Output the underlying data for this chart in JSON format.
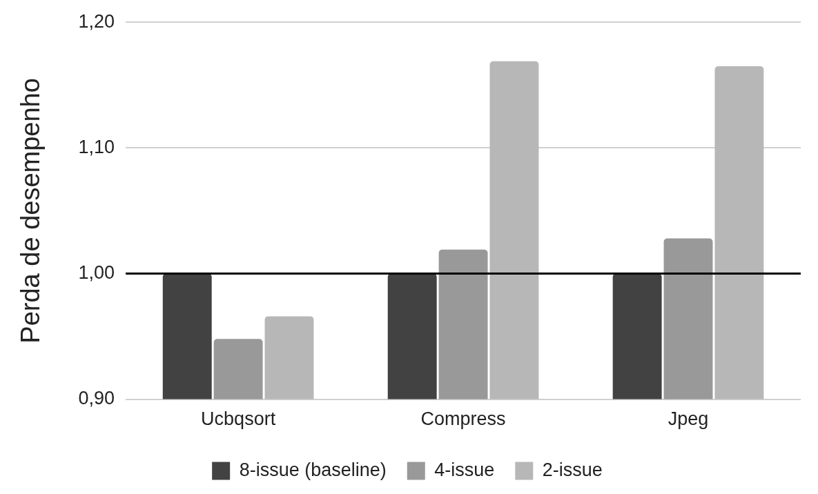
{
  "chart_data": {
    "type": "bar",
    "ylabel": "Perda de desempenho",
    "categories": [
      "Ucbqsort",
      "Compress",
      "Jpeg"
    ],
    "series": [
      {
        "name": "8-issue (baseline)",
        "color": "#424242",
        "values": [
          1.0,
          1.0,
          1.0
        ]
      },
      {
        "name": "4-issue",
        "color": "#999999",
        "values": [
          0.948,
          1.019,
          1.028
        ]
      },
      {
        "name": "2-issue",
        "color": "#b7b7b7",
        "values": [
          0.966,
          1.169,
          1.165
        ]
      }
    ],
    "ylim": [
      0.9,
      1.2
    ],
    "yticks": [
      {
        "value": 0.9,
        "label": "0,90"
      },
      {
        "value": 1.0,
        "label": "1,00"
      },
      {
        "value": 1.1,
        "label": "1,10"
      },
      {
        "value": 1.2,
        "label": "1,20"
      }
    ],
    "grid": "y",
    "legend": "bottom",
    "ref_lines": [
      {
        "axis": "y",
        "value": 1.0,
        "color": "#000000"
      }
    ]
  }
}
